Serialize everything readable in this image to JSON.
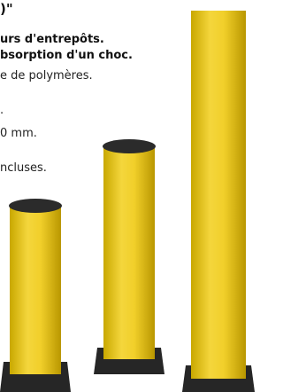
{
  "heading": ")\"",
  "lines": [
    {
      "text": "urs d'entrepôts.",
      "bold": true
    },
    {
      "text": "bsorption d'un choc.",
      "bold": true
    },
    {
      "text": "e de polymères.",
      "bold": false
    },
    {
      "text": ".",
      "bold": false
    },
    {
      "text": "0 mm.",
      "bold": false
    },
    {
      "text": "ncluses.",
      "bold": false
    }
  ]
}
